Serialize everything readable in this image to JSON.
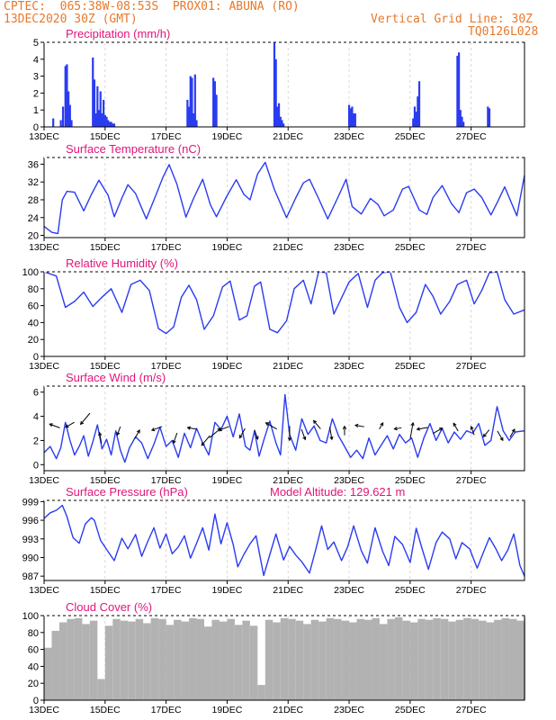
{
  "header": {
    "line1_left": "CPTEC:  065:38W-08:53S  PROX01: ABUNA (RO)",
    "line2_left": "13DEC2020 30Z (GMT)",
    "line2_right": "Vertical Grid Line: 30Z",
    "line3_right": "TQ0126L028",
    "color": "#e8782a"
  },
  "x_axis": {
    "range": [
      0,
      15.75
    ],
    "ticks": [
      {
        "v": 0,
        "label": "13DEC"
      },
      {
        "v": 2,
        "label": "15DEC"
      },
      {
        "v": 4,
        "label": "17DEC"
      },
      {
        "v": 6,
        "label": "19DEC"
      },
      {
        "v": 8,
        "label": "21DEC"
      },
      {
        "v": 10,
        "label": "23DEC"
      },
      {
        "v": 12,
        "label": "25DEC"
      },
      {
        "v": 14,
        "label": "27DEC"
      }
    ]
  },
  "chart_data": [
    {
      "type": "bar",
      "title": "Precipitation (mm/h)",
      "ylim": [
        0,
        5
      ],
      "yticks": [
        0,
        1,
        2,
        3,
        4,
        5
      ],
      "color": "#2a3cf0",
      "x": [
        0.3,
        0.55,
        0.62,
        0.7,
        0.75,
        0.8,
        0.85,
        0.9,
        1.6,
        1.65,
        1.7,
        1.75,
        1.8,
        1.85,
        1.9,
        1.95,
        2.0,
        2.05,
        2.1,
        2.15,
        2.2,
        2.25,
        2.3,
        4.7,
        4.75,
        4.8,
        4.85,
        4.9,
        4.95,
        5.0,
        5.55,
        5.6,
        5.65,
        7.55,
        7.6,
        7.65,
        7.7,
        7.75,
        7.8,
        7.85,
        10.0,
        10.05,
        10.1,
        10.15,
        10.2,
        12.1,
        12.15,
        12.2,
        12.25,
        12.3,
        13.55,
        13.6,
        13.65,
        13.7,
        13.75,
        14.55,
        14.6
      ],
      "values": [
        0.5,
        0.4,
        1.2,
        3.6,
        3.7,
        2.1,
        1.3,
        0.4,
        4.1,
        2.8,
        0.8,
        2.4,
        1.0,
        2.1,
        0.8,
        1.6,
        0.7,
        0.6,
        0.4,
        0.3,
        0.3,
        0.2,
        0.2,
        1.6,
        1.2,
        3.0,
        2.9,
        0.8,
        3.1,
        0.4,
        2.9,
        2.7,
        1.9,
        5.0,
        4.0,
        1.2,
        1.4,
        0.6,
        0.4,
        0.2,
        1.3,
        1.1,
        1.2,
        0.8,
        0.8,
        0.5,
        1.2,
        0.9,
        1.8,
        2.7,
        4.2,
        4.4,
        1.0,
        0.6,
        0.3,
        1.2,
        1.1
      ]
    },
    {
      "type": "line",
      "title": "Surface Temperature (nC)",
      "ylim": [
        19.5,
        37.5
      ],
      "yticks": [
        20,
        24,
        28,
        32,
        36
      ],
      "color": "#2a3cf0",
      "x": [
        0,
        0.25,
        0.45,
        0.6,
        0.75,
        1.0,
        1.3,
        1.55,
        1.8,
        2.1,
        2.3,
        2.55,
        2.75,
        3.0,
        3.35,
        3.65,
        3.9,
        4.1,
        4.35,
        4.65,
        4.9,
        5.2,
        5.45,
        5.65,
        6.0,
        6.3,
        6.55,
        6.75,
        7.0,
        7.25,
        7.55,
        7.95,
        8.25,
        8.5,
        8.7,
        9.0,
        9.3,
        9.65,
        9.9,
        10.1,
        10.4,
        10.7,
        10.95,
        11.15,
        11.45,
        11.75,
        11.95,
        12.3,
        12.55,
        12.75,
        13.05,
        13.35,
        13.6,
        13.85,
        14.1,
        14.35,
        14.65,
        14.85,
        15.1,
        15.5,
        15.75
      ],
      "values": [
        22,
        20.7,
        20.4,
        28,
        29.9,
        29.7,
        25.5,
        29.2,
        32.4,
        29,
        24.2,
        28.4,
        31.4,
        29.4,
        23.7,
        28.8,
        33.1,
        35.9,
        31.6,
        24.1,
        28.3,
        32.6,
        26.9,
        24.2,
        28.9,
        32.5,
        29.2,
        28,
        33.8,
        36.4,
        30.3,
        24,
        28.4,
        31.8,
        32.6,
        28.3,
        23.7,
        28.8,
        32.6,
        26.5,
        24.8,
        28.3,
        26.9,
        24.4,
        25.7,
        30.4,
        31,
        25.7,
        24.7,
        28.5,
        31.2,
        27.2,
        25.1,
        29.6,
        30.4,
        28.5,
        24.6,
        27.3,
        30.9,
        24.4,
        33.5
      ]
    },
    {
      "type": "line",
      "title": "Relative Humidity (%)",
      "ylim": [
        0,
        100
      ],
      "yticks": [
        0,
        20,
        40,
        60,
        80,
        100
      ],
      "color": "#2a3cf0",
      "x": [
        0,
        0.4,
        0.7,
        1.0,
        1.3,
        1.6,
        1.9,
        2.2,
        2.55,
        2.85,
        3.15,
        3.45,
        3.75,
        4.0,
        4.25,
        4.5,
        4.75,
        5.0,
        5.25,
        5.55,
        5.85,
        6.1,
        6.4,
        6.65,
        6.9,
        7.1,
        7.4,
        7.65,
        7.95,
        8.2,
        8.5,
        8.75,
        9.0,
        9.25,
        9.5,
        9.75,
        10.0,
        10.3,
        10.6,
        10.85,
        11.1,
        11.35,
        11.65,
        11.9,
        12.2,
        12.5,
        12.75,
        13.0,
        13.3,
        13.55,
        13.85,
        14.1,
        14.35,
        14.6,
        14.85,
        15.1,
        15.4,
        15.75
      ],
      "values": [
        100,
        95,
        58,
        65,
        76,
        59,
        70,
        80,
        52,
        85,
        90,
        78,
        33,
        27,
        35,
        70,
        84,
        67,
        32,
        48,
        82,
        89,
        43,
        48,
        83,
        88,
        32,
        28,
        42,
        80,
        90,
        62,
        100,
        99,
        50,
        69,
        88,
        98,
        58,
        90,
        99,
        100,
        58,
        40,
        52,
        85,
        71,
        50,
        65,
        85,
        90,
        62,
        78,
        99,
        100,
        67,
        50,
        55
      ]
    },
    {
      "type": "line",
      "title": "Surface Wind (m/s)",
      "ylim": [
        -0.5,
        6.5
      ],
      "yticks": [
        0,
        2,
        4,
        6
      ],
      "color": "#2a3cf0",
      "arrow_color": "#000000",
      "x": [
        0,
        0.2,
        0.4,
        0.55,
        0.7,
        0.85,
        1.0,
        1.15,
        1.3,
        1.45,
        1.6,
        1.75,
        1.9,
        2.05,
        2.2,
        2.35,
        2.5,
        2.65,
        2.8,
        3.0,
        3.2,
        3.4,
        3.6,
        3.8,
        4.0,
        4.2,
        4.4,
        4.6,
        4.8,
        5.0,
        5.2,
        5.4,
        5.6,
        5.8,
        6.0,
        6.2,
        6.4,
        6.6,
        6.75,
        6.9,
        7.05,
        7.2,
        7.4,
        7.6,
        7.75,
        7.9,
        8.05,
        8.25,
        8.45,
        8.65,
        8.85,
        9.05,
        9.25,
        9.45,
        9.65,
        9.85,
        10.05,
        10.25,
        10.45,
        10.65,
        10.85,
        11.05,
        11.25,
        11.45,
        11.65,
        11.85,
        12.05,
        12.25,
        12.45,
        12.65,
        12.85,
        13.05,
        13.25,
        13.45,
        13.65,
        13.85,
        14.05,
        14.25,
        14.45,
        14.65,
        14.85,
        15.05,
        15.25,
        15.45,
        15.75
      ],
      "values": [
        1.0,
        1.5,
        0.5,
        1.4,
        3.5,
        2.0,
        0.8,
        1.5,
        2.4,
        0.7,
        1.9,
        3.3,
        1.3,
        2.1,
        0.8,
        2.8,
        1.2,
        0.2,
        1.4,
        2.3,
        1.8,
        0.5,
        1.7,
        3.1,
        1.5,
        2.0,
        0.6,
        2.6,
        1.4,
        3.0,
        1.8,
        0.8,
        3.5,
        2.9,
        4.0,
        2.3,
        4.2,
        1.5,
        1.2,
        2.8,
        0.7,
        2.0,
        3.6,
        1.8,
        0.8,
        5.8,
        2.5,
        1.2,
        3.8,
        2.5,
        3.2,
        2.0,
        1.8,
        3.8,
        2.4,
        1.5,
        0.6,
        1.2,
        0.5,
        2.2,
        0.8,
        1.6,
        2.4,
        1.3,
        2.5,
        1.8,
        2.2,
        0.6,
        2.2,
        3.4,
        2.0,
        3.0,
        1.8,
        2.7,
        2.1,
        2.8,
        2.6,
        3.4,
        1.6,
        2.0,
        4.8,
        2.8,
        2.0,
        2.7,
        2.8
      ],
      "arrows": [
        {
          "x": 0.35,
          "y": 3.2,
          "dir": 160,
          "len": 12
        },
        {
          "x": 0.85,
          "y": 3.3,
          "dir": 210,
          "len": 11
        },
        {
          "x": 1.35,
          "y": 3.8,
          "dir": 230,
          "len": 16
        },
        {
          "x": 1.85,
          "y": 2.2,
          "dir": 100,
          "len": 12
        },
        {
          "x": 2.45,
          "y": 2.8,
          "dir": 250,
          "len": 10
        },
        {
          "x": 3.05,
          "y": 2.5,
          "dir": 60,
          "len": 11
        },
        {
          "x": 3.7,
          "y": 3.0,
          "dir": 200,
          "len": 12
        },
        {
          "x": 4.3,
          "y": 2.2,
          "dir": 250,
          "len": 12
        },
        {
          "x": 4.85,
          "y": 3.0,
          "dir": 170,
          "len": 10
        },
        {
          "x": 5.3,
          "y": 2.0,
          "dir": 230,
          "len": 14
        },
        {
          "x": 5.6,
          "y": 2.6,
          "dir": 40,
          "len": 16
        },
        {
          "x": 5.9,
          "y": 3.0,
          "dir": 200,
          "len": 12
        },
        {
          "x": 6.5,
          "y": 2.6,
          "dir": 240,
          "len": 12
        },
        {
          "x": 6.95,
          "y": 2.5,
          "dir": 290,
          "len": 11
        },
        {
          "x": 7.45,
          "y": 3.2,
          "dir": 150,
          "len": 14
        },
        {
          "x": 8.05,
          "y": 2.6,
          "dir": 270,
          "len": 16
        },
        {
          "x": 8.5,
          "y": 2.5,
          "dir": 290,
          "len": 12
        },
        {
          "x": 8.95,
          "y": 3.3,
          "dir": 130,
          "len": 12
        },
        {
          "x": 9.4,
          "y": 2.6,
          "dir": 280,
          "len": 14
        },
        {
          "x": 9.85,
          "y": 2.8,
          "dir": 90,
          "len": 10
        },
        {
          "x": 10.35,
          "y": 3.2,
          "dir": 170,
          "len": 10
        },
        {
          "x": 11.05,
          "y": 3.2,
          "dir": 60,
          "len": 8
        },
        {
          "x": 11.6,
          "y": 3.0,
          "dir": 190,
          "len": 8
        },
        {
          "x": 12.05,
          "y": 2.8,
          "dir": 80,
          "len": 18
        },
        {
          "x": 12.4,
          "y": 3.0,
          "dir": 190,
          "len": 12
        },
        {
          "x": 12.9,
          "y": 2.8,
          "dir": 30,
          "len": 12
        },
        {
          "x": 13.5,
          "y": 3.1,
          "dir": 120,
          "len": 10
        },
        {
          "x": 14.05,
          "y": 2.8,
          "dir": 110,
          "len": 10
        },
        {
          "x": 14.5,
          "y": 2.6,
          "dir": 230,
          "len": 10
        },
        {
          "x": 14.95,
          "y": 2.4,
          "dir": 300,
          "len": 12
        },
        {
          "x": 15.35,
          "y": 2.6,
          "dir": 60,
          "len": 10
        }
      ]
    },
    {
      "type": "line",
      "title": "Surface Pressure (hPa)",
      "annotation": "Model Altitude: 129.621  m",
      "ylim": [
        986.3,
        999.2
      ],
      "yticks": [
        987,
        990,
        993,
        996,
        999
      ],
      "ytick_labels": [
        "987",
        "990",
        "993",
        "996",
        "999"
      ],
      "color": "#2a3cf0",
      "x": [
        0,
        0.2,
        0.4,
        0.6,
        0.75,
        0.95,
        1.15,
        1.35,
        1.55,
        1.65,
        1.85,
        2.05,
        2.3,
        2.55,
        2.75,
        3.0,
        3.2,
        3.4,
        3.6,
        3.8,
        4.0,
        4.2,
        4.4,
        4.6,
        4.8,
        5.0,
        5.2,
        5.4,
        5.6,
        5.8,
        6.0,
        6.2,
        6.35,
        6.55,
        6.75,
        6.95,
        7.2,
        7.45,
        7.6,
        7.85,
        8.05,
        8.25,
        8.45,
        8.7,
        8.9,
        9.1,
        9.3,
        9.5,
        9.75,
        9.95,
        10.15,
        10.4,
        10.6,
        10.85,
        11.1,
        11.3,
        11.5,
        11.75,
        12.0,
        12.2,
        12.4,
        12.6,
        12.85,
        13.05,
        13.3,
        13.5,
        13.7,
        13.95,
        14.2,
        14.4,
        14.6,
        14.8,
        15.0,
        15.2,
        15.4,
        15.6,
        15.75
      ],
      "values": [
        996.3,
        997.2,
        997.6,
        998.4,
        996.6,
        993.2,
        992.3,
        995.4,
        996.4,
        996.0,
        992.8,
        991.3,
        989.5,
        993.1,
        991.4,
        993.7,
        990.2,
        992.6,
        994.8,
        991.5,
        993.8,
        990.6,
        991.7,
        993.5,
        989.9,
        992.3,
        994.8,
        991.2,
        997.0,
        992.2,
        995.6,
        992.1,
        988.5,
        990.5,
        992.2,
        993.5,
        987.1,
        991.3,
        993.8,
        989.6,
        991.8,
        990.4,
        989.3,
        987.5,
        991.2,
        995.1,
        991.3,
        992.5,
        989.5,
        991.7,
        995.1,
        991.1,
        989.1,
        994.8,
        991.0,
        988.7,
        993.4,
        992.1,
        989.2,
        994.7,
        991.3,
        988.1,
        992.4,
        994.1,
        993.0,
        989.8,
        992.4,
        991.4,
        988.3,
        990.8,
        993.2,
        991.5,
        989.5,
        991.2,
        993.8,
        988.7,
        987.0
      ]
    },
    {
      "type": "bar",
      "title": "Cloud Cover (%)",
      "ylim": [
        0,
        100
      ],
      "yticks": [
        0,
        20,
        40,
        60,
        80,
        100
      ],
      "color": "#b2b2b2",
      "x": [
        0,
        0.25,
        0.5,
        0.75,
        1.0,
        1.25,
        1.5,
        1.75,
        2.0,
        2.25,
        2.5,
        2.75,
        3.0,
        3.25,
        3.5,
        3.75,
        4.0,
        4.25,
        4.5,
        4.75,
        5.0,
        5.25,
        5.5,
        5.75,
        6.0,
        6.25,
        6.5,
        6.75,
        7.0,
        7.25,
        7.5,
        7.75,
        8.0,
        8.25,
        8.5,
        8.75,
        9.0,
        9.25,
        9.5,
        9.75,
        10.0,
        10.25,
        10.5,
        10.75,
        11.0,
        11.25,
        11.5,
        11.75,
        12.0,
        12.25,
        12.5,
        12.75,
        13.0,
        13.25,
        13.5,
        13.75,
        14.0,
        14.25,
        14.5,
        14.75,
        15.0,
        15.25,
        15.5,
        15.75
      ],
      "values": [
        62,
        82,
        92,
        96,
        97,
        90,
        94,
        25,
        88,
        96,
        94,
        93,
        96,
        91,
        97,
        96,
        89,
        95,
        93,
        97,
        96,
        87,
        95,
        93,
        96,
        89,
        94,
        88,
        18,
        95,
        92,
        97,
        96,
        94,
        90,
        95,
        93,
        97,
        96,
        94,
        92,
        96,
        95,
        97,
        90,
        96,
        98,
        94,
        92,
        96,
        95,
        97,
        96,
        93,
        95,
        97,
        96,
        94,
        92,
        95,
        97,
        96,
        94,
        98
      ]
    }
  ]
}
